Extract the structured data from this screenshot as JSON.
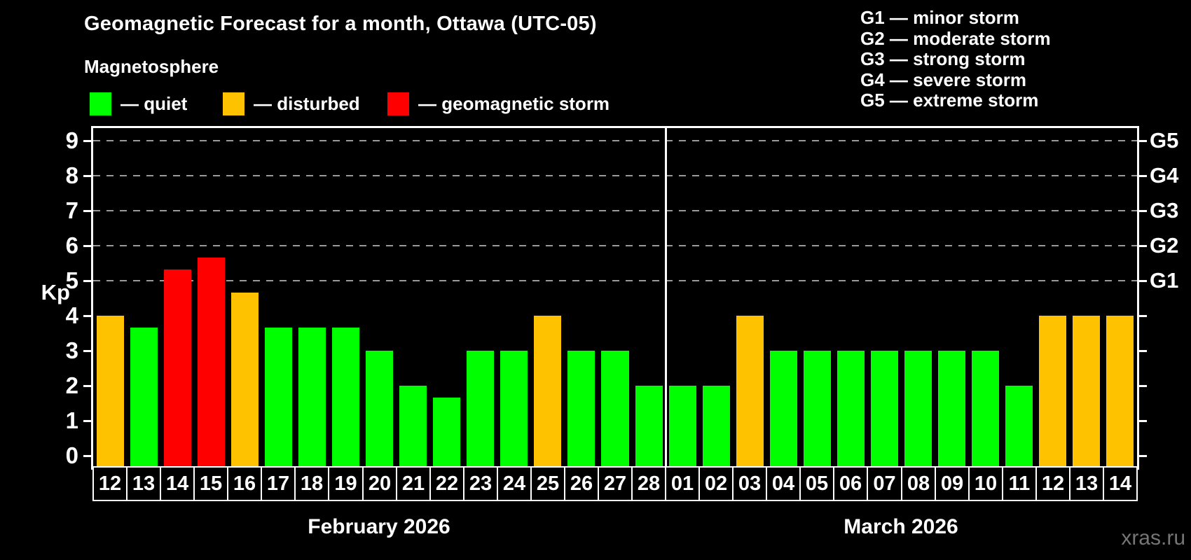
{
  "header": {
    "title": "Geomagnetic Forecast for a month, Ottawa (UTC-05)",
    "subtitle": "Magnetosphere"
  },
  "legend": {
    "quiet_label": "— quiet",
    "disturbed_label": "— disturbed",
    "storm_label": "— geomagnetic storm"
  },
  "g_legend": {
    "g1": "G1 — minor storm",
    "g2": "G2 — moderate storm",
    "g3": "G3 — strong storm",
    "g4": "G4 — severe storm",
    "g5": "G5 — extreme storm"
  },
  "watermark": "xras.ru",
  "colors": {
    "quiet": "#00ff00",
    "disturbed": "#ffc200",
    "storm": "#ff0000",
    "gridline": "#9a9a9a",
    "axis": "#ffffff",
    "background": "#000000"
  },
  "chart_data": {
    "type": "bar",
    "ylabel": "Kp",
    "ylim": [
      -0.35,
      9.35
    ],
    "y_ticks": [
      0,
      1,
      2,
      3,
      4,
      5,
      6,
      7,
      8,
      9
    ],
    "grid": "dashed horizontal at Kp 5-9 only",
    "right_axis_labels": [
      {
        "kp": 5,
        "label": "G1"
      },
      {
        "kp": 6,
        "label": "G2"
      },
      {
        "kp": 7,
        "label": "G3"
      },
      {
        "kp": 8,
        "label": "G4"
      },
      {
        "kp": 9,
        "label": "G5"
      }
    ],
    "months": [
      {
        "label": "February 2026",
        "days": 17
      },
      {
        "label": "March 2026",
        "days": 14
      }
    ],
    "bars": [
      {
        "day": "12",
        "kp": 4.0,
        "status": "disturbed"
      },
      {
        "day": "13",
        "kp": 3.67,
        "status": "quiet"
      },
      {
        "day": "14",
        "kp": 5.33,
        "status": "storm"
      },
      {
        "day": "15",
        "kp": 5.67,
        "status": "storm"
      },
      {
        "day": "16",
        "kp": 4.67,
        "status": "disturbed"
      },
      {
        "day": "17",
        "kp": 3.67,
        "status": "quiet"
      },
      {
        "day": "18",
        "kp": 3.67,
        "status": "quiet"
      },
      {
        "day": "19",
        "kp": 3.67,
        "status": "quiet"
      },
      {
        "day": "20",
        "kp": 3.0,
        "status": "quiet"
      },
      {
        "day": "21",
        "kp": 2.0,
        "status": "quiet"
      },
      {
        "day": "22",
        "kp": 1.67,
        "status": "quiet"
      },
      {
        "day": "23",
        "kp": 3.0,
        "status": "quiet"
      },
      {
        "day": "24",
        "kp": 3.0,
        "status": "quiet"
      },
      {
        "day": "25",
        "kp": 4.0,
        "status": "disturbed"
      },
      {
        "day": "26",
        "kp": 3.0,
        "status": "quiet"
      },
      {
        "day": "27",
        "kp": 3.0,
        "status": "quiet"
      },
      {
        "day": "28",
        "kp": 2.0,
        "status": "quiet"
      },
      {
        "day": "01",
        "kp": 2.0,
        "status": "quiet"
      },
      {
        "day": "02",
        "kp": 2.0,
        "status": "quiet"
      },
      {
        "day": "03",
        "kp": 4.0,
        "status": "disturbed"
      },
      {
        "day": "04",
        "kp": 3.0,
        "status": "quiet"
      },
      {
        "day": "05",
        "kp": 3.0,
        "status": "quiet"
      },
      {
        "day": "06",
        "kp": 3.0,
        "status": "quiet"
      },
      {
        "day": "07",
        "kp": 3.0,
        "status": "quiet"
      },
      {
        "day": "08",
        "kp": 3.0,
        "status": "quiet"
      },
      {
        "day": "09",
        "kp": 3.0,
        "status": "quiet"
      },
      {
        "day": "10",
        "kp": 3.0,
        "status": "quiet"
      },
      {
        "day": "11",
        "kp": 2.0,
        "status": "quiet"
      },
      {
        "day": "12",
        "kp": 4.0,
        "status": "disturbed"
      },
      {
        "day": "13",
        "kp": 4.0,
        "status": "disturbed"
      },
      {
        "day": "14",
        "kp": 4.0,
        "status": "disturbed"
      }
    ]
  }
}
